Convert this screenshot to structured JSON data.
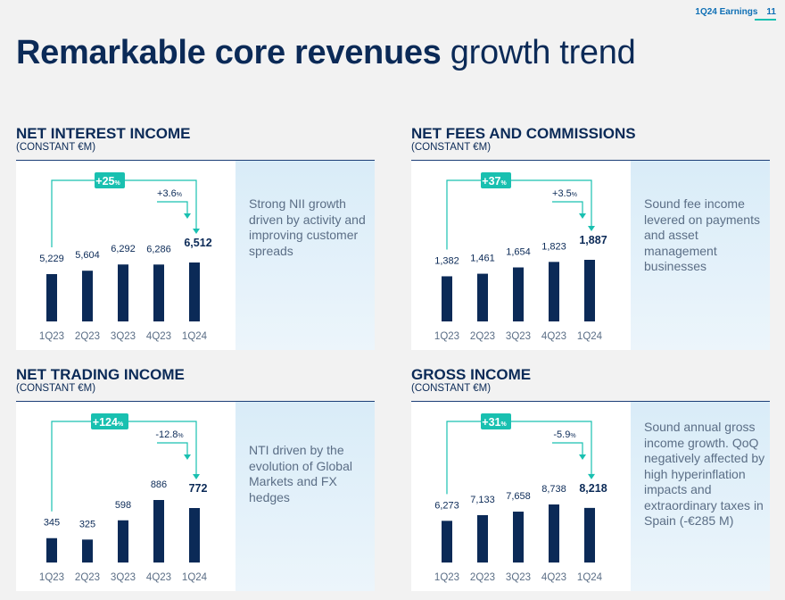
{
  "header": {
    "label": "1Q24 Earnings",
    "page": "11"
  },
  "title": {
    "bold": "Remarkable core revenues",
    "light": "growth trend"
  },
  "colors": {
    "bar": "#0b2a57",
    "accent": "#19c0b0",
    "text_muted": "#5b6e86"
  },
  "panels": [
    {
      "title": "NET INTEREST INCOME",
      "subtitle": "(CONSTANT €M)",
      "commentary": "Strong NII growth driven by activity and improving customer spreads",
      "total_growth": "+25%",
      "qoq_growth": "+3.6%",
      "chart_data": {
        "type": "bar",
        "categories": [
          "1Q23",
          "2Q23",
          "3Q23",
          "4Q23",
          "1Q24"
        ],
        "values": [
          5229,
          5604,
          6292,
          6286,
          6512
        ],
        "labels": [
          "5,229",
          "5,604",
          "6,292",
          "6,286",
          "6,512"
        ]
      }
    },
    {
      "title": "NET FEES AND COMMISSIONS",
      "subtitle": "(CONSTANT €M)",
      "commentary": "Sound fee income levered on payments and asset management businesses",
      "total_growth": "+37%",
      "qoq_growth": "+3.5%",
      "chart_data": {
        "type": "bar",
        "categories": [
          "1Q23",
          "2Q23",
          "3Q23",
          "4Q23",
          "1Q24"
        ],
        "values": [
          1382,
          1461,
          1654,
          1823,
          1887
        ],
        "labels": [
          "1,382",
          "1,461",
          "1,654",
          "1,823",
          "1,887"
        ]
      }
    },
    {
      "title": "NET TRADING INCOME",
      "subtitle": "(CONSTANT €M)",
      "commentary": "NTI driven by the evolution of Global Markets and FX hedges",
      "total_growth": "+124%",
      "qoq_growth": "-12.8%",
      "chart_data": {
        "type": "bar",
        "categories": [
          "1Q23",
          "2Q23",
          "3Q23",
          "4Q23",
          "1Q24"
        ],
        "values": [
          345,
          325,
          598,
          886,
          772
        ],
        "labels": [
          "345",
          "325",
          "598",
          "886",
          "772"
        ]
      }
    },
    {
      "title": "GROSS INCOME",
      "subtitle": "(CONSTANT €M)",
      "commentary": "Sound annual gross income growth. QoQ negatively affected by high hyperinflation impacts and extraordinary taxes in Spain (-€285 M)",
      "total_growth": "+31%",
      "qoq_growth": "-5.9%",
      "chart_data": {
        "type": "bar",
        "categories": [
          "1Q23",
          "2Q23",
          "3Q23",
          "4Q23",
          "1Q24"
        ],
        "values": [
          6273,
          7133,
          7658,
          8738,
          8218
        ],
        "labels": [
          "6,273",
          "7,133",
          "7,658",
          "8,738",
          "8,218"
        ]
      }
    }
  ]
}
